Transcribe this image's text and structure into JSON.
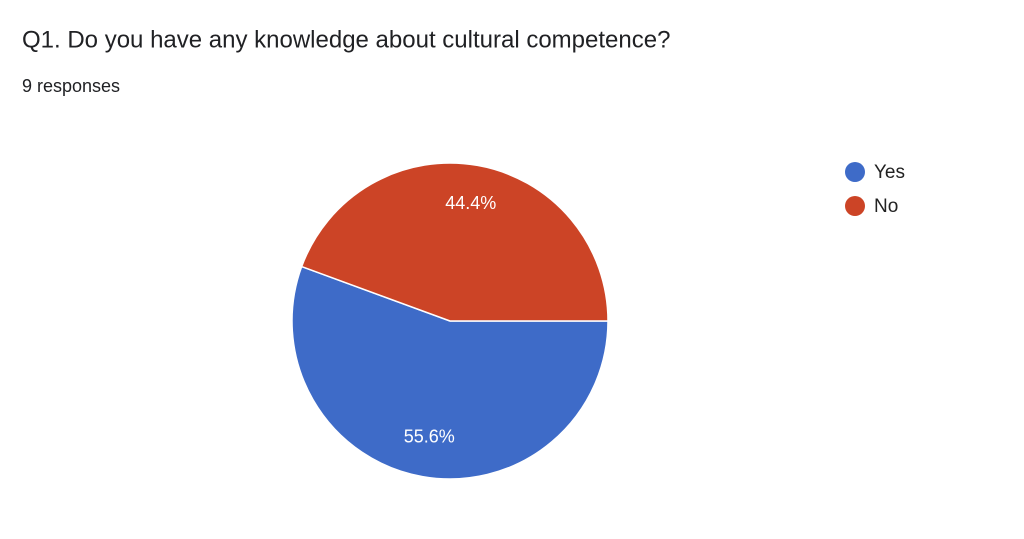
{
  "chart_data": {
    "type": "pie",
    "title": "Q1. Do you have any knowledge about cultural competence?",
    "subtitle": "9 responses",
    "categories": [
      "Yes",
      "No"
    ],
    "values": [
      55.6,
      44.4
    ],
    "value_labels": [
      "55.6%",
      "44.4%"
    ],
    "colors": [
      "#3e6bc8",
      "#cc4426"
    ],
    "legend": "right"
  }
}
